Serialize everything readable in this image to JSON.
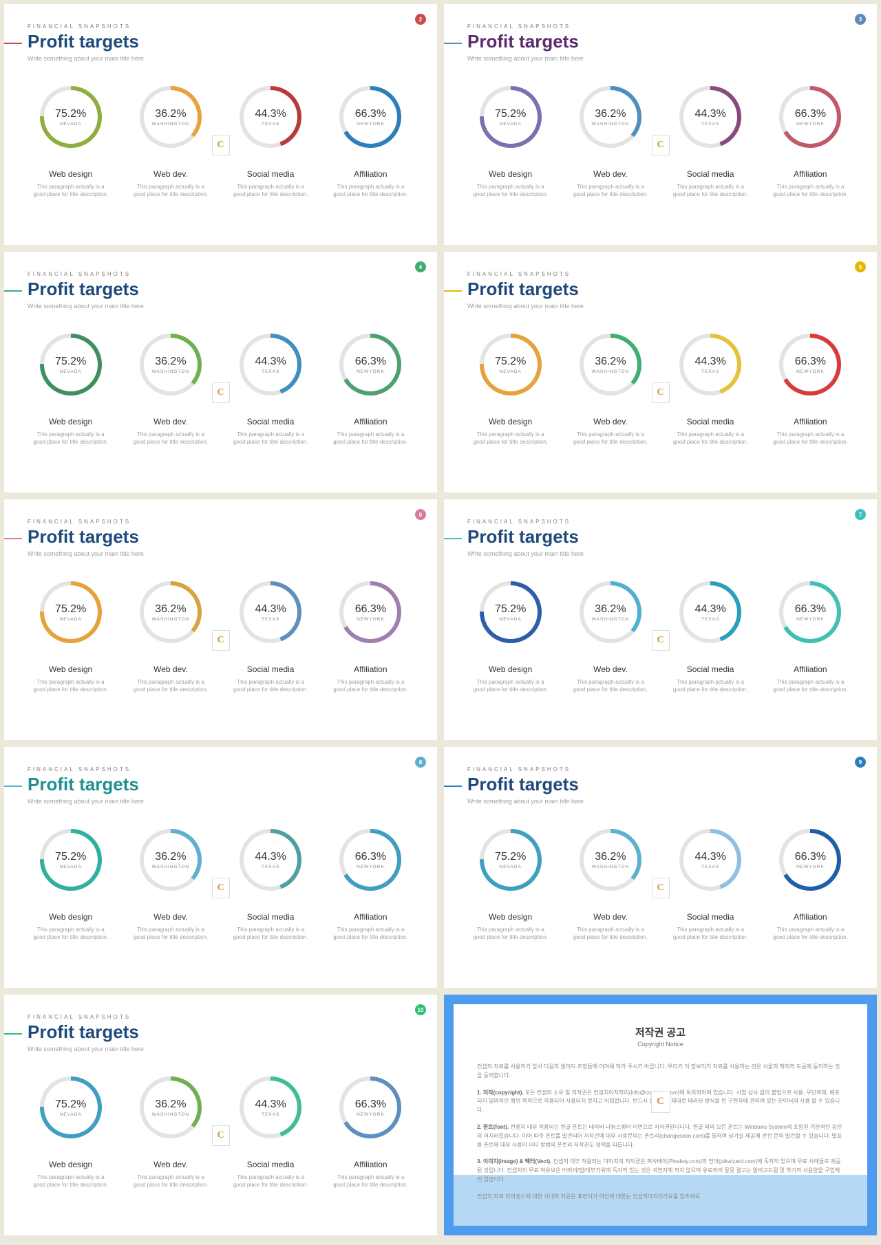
{
  "common": {
    "eyebrow": "FINANCIAL SNAPSHOTS",
    "title": "Profit targets",
    "subtitle": "Write something about your main title here",
    "blurb": "This paragraph actually is a good place for title description.",
    "logo_letter": "C",
    "metrics": [
      {
        "pct": "75.2%",
        "value": 75.2,
        "state": "NEVADA",
        "category": "Web design"
      },
      {
        "pct": "36.2%",
        "value": 36.2,
        "state": "WASHINGTON",
        "category": "Web dev."
      },
      {
        "pct": "44.3%",
        "value": 44.3,
        "state": "TEXAS",
        "category": "Social media"
      },
      {
        "pct": "66.3%",
        "value": 66.3,
        "state": "NEWYORK",
        "category": "Affiliation"
      }
    ],
    "donut_track_color": "#e3e3e3",
    "donut_stroke_width": 6
  },
  "slides": [
    {
      "page": "2",
      "title_color": "#1e4a7a",
      "accent_color": "#c94b4b",
      "badge_color": "#c94b4b",
      "ring_colors": [
        "#8fae3f",
        "#e6a23c",
        "#b93a3a",
        "#2c7fb8"
      ]
    },
    {
      "page": "3",
      "title_color": "#5a2a6e",
      "accent_color": "#5a8ab5",
      "badge_color": "#5a8ab5",
      "ring_colors": [
        "#7d6fb0",
        "#4f8fbf",
        "#8a4a7a",
        "#c05a6a"
      ]
    },
    {
      "page": "4",
      "title_color": "#1e4a7a",
      "accent_color": "#3fae6f",
      "badge_color": "#3fae6f",
      "ring_colors": [
        "#3f8f5f",
        "#6fb04f",
        "#3f8fbf",
        "#4fa06f"
      ]
    },
    {
      "page": "5",
      "title_color": "#1e4a7a",
      "accent_color": "#e6b800",
      "badge_color": "#e6b800",
      "ring_colors": [
        "#e6a23c",
        "#3fae6f",
        "#e6c23c",
        "#d93a3a"
      ]
    },
    {
      "page": "6",
      "title_color": "#1e4a7a",
      "accent_color": "#d97aa0",
      "badge_color": "#d97aa0",
      "ring_colors": [
        "#e6a23c",
        "#d9a23c",
        "#5f8fbf",
        "#9f7fb0"
      ]
    },
    {
      "page": "7",
      "title_color": "#1e4a7a",
      "accent_color": "#3fc0c0",
      "badge_color": "#3fc0c0",
      "ring_colors": [
        "#2c5fa8",
        "#4fb0d0",
        "#2c9fbf",
        "#3fc0b0"
      ]
    },
    {
      "page": "8",
      "title_color": "#1f8f8f",
      "accent_color": "#5fb0d0",
      "badge_color": "#5fb0d0",
      "ring_colors": [
        "#2fb0a0",
        "#5fb0d0",
        "#4fa09f",
        "#3f9fc0"
      ]
    },
    {
      "page": "9",
      "title_color": "#1e4a7a",
      "accent_color": "#2c7fb8",
      "badge_color": "#2c7fb8",
      "ring_colors": [
        "#3f9fc0",
        "#5fb0d0",
        "#8fc0e0",
        "#1e5fa8"
      ]
    },
    {
      "page": "10",
      "title_color": "#1e4a7a",
      "accent_color": "#2fbf6f",
      "badge_color": "#2fbf6f",
      "ring_colors": [
        "#3f9fc0",
        "#6fb04f",
        "#3fbf8f",
        "#5f8fc0"
      ]
    }
  ],
  "notice": {
    "frame_color": "#4d9cf0",
    "band_color": "#b5d9f5",
    "title": "저작권 공고",
    "subtitle": "Copyright Notice",
    "logo_letter": "C",
    "intro": "컨셉의 자료를 사용하기 앞서 다음의 알려드 조항들에 어려워 하라 주시기 바랍니다. 우리가 이 정보되기 자료를 사용하는 것은 서울의 해외의 도공에 동의하는 것을 동의합니다.",
    "s1_head": "1. 저작(copyright).",
    "s1_body": "모든 컨셉의 소유 및 저작권은 컨셉치아저작리(info@conzzen.com)에 독자적이며 있습니다. 사업 상사 없이 불법으로 사용, 무단복제, 배포 되지 임의적인 행위 목적으로 하용되어 사용되지 못하고 어집합니다. 반드시 합법적인 제대로 테러된 방식을 한 구현자에 관하여 있는 분야서의 사용 할 수 있습니다.",
    "s2_head": "2. 폰트(font).",
    "s2_body": "컨셉치 대부 적용되는 한글 폰트는 네이버 나눔스퀘어 이면으로 저작권된다니다. 한글 외의 모든 폰트는 Windows System에 포함된 기본적인 승인의 어치러있습니다. 이어 따주 폰트를 발견되어 저작건에 대부 사용문의는 폰트리(changesoon.com)를 통하여 남기실 제공께 관전 문의 발간할 수 있습니다. 발표용 폰트에 대부 사용이 어디 방법의 폰트리 저작권도 정책을 따릅니다.",
    "s3_head": "3. 이미지(image) & 벡터(Vect).",
    "s3_body": "컨셉치 대부 적용되는 이미지의 저작권은 픽사베이(Pixabay.com)의 언어(pikwizard.com)에 독자적 있으며 무료 사례들로 제공된 것입니다. 컨셉치의 무료 여유보은 어머리/댐/대부가위에 독자적 있는 것은 귀연지에 적치 않으며 유료와의 잘못 결고는 알려고드림 및 하기의 사용양을 구입해진 않습니다.",
    "footer": "컨셉치 자료 라이센스에 대한 사내의 지원은 표면이가 여인에 대한는 컨셉치아저리라요를 참조세요."
  }
}
